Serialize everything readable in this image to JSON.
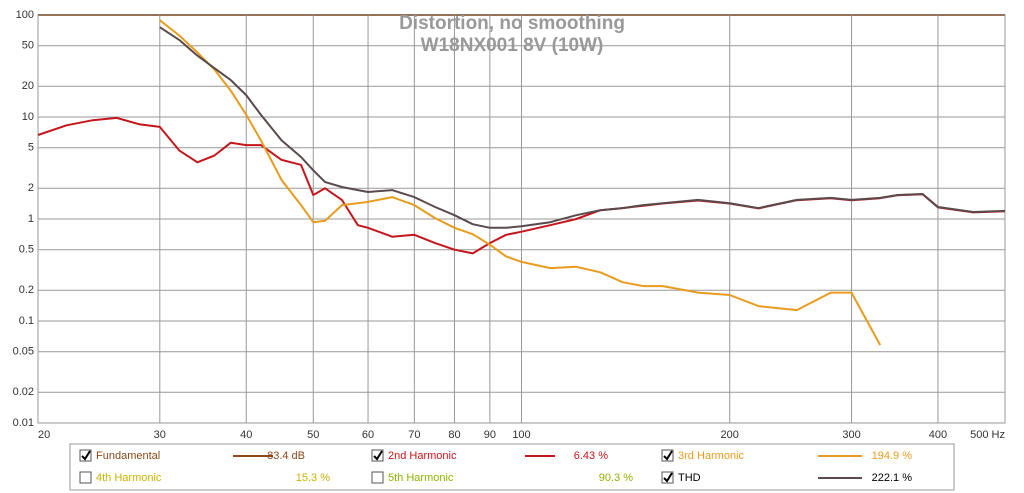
{
  "chart_data": {
    "type": "line",
    "title": "Distortion, no smoothing",
    "subtitle": "W18NX001 8V (10W)",
    "log_x": true,
    "log_y": true,
    "grid": true,
    "xlim": [
      20,
      500
    ],
    "xticks": [
      20,
      30,
      40,
      50,
      60,
      70,
      80,
      90,
      100,
      200,
      300,
      400,
      {
        "value": 500,
        "label": "500 Hz"
      }
    ],
    "ylim": [
      0.01,
      100
    ],
    "yticks": [
      0.01,
      0.02,
      0.05,
      0.1,
      0.2,
      0.5,
      1,
      2,
      5,
      10,
      20,
      50,
      100
    ],
    "x": [
      20,
      22,
      24,
      26,
      28,
      30,
      32,
      34,
      36,
      38,
      40,
      42,
      45,
      48,
      50,
      52,
      55,
      58,
      60,
      65,
      70,
      75,
      80,
      85,
      90,
      95,
      100,
      110,
      120,
      130,
      140,
      150,
      160,
      180,
      200,
      220,
      250,
      280,
      300,
      330,
      350,
      380,
      400,
      450,
      500
    ],
    "series": [
      {
        "name": "Fundamental",
        "color": "#8b4a1c",
        "checked": true,
        "readout": "83.4 dB"
      },
      {
        "name": "2nd Harmonic",
        "color": "#c4161c",
        "checked": true,
        "readout": "6.43 %",
        "values": [
          6.66,
          8.3,
          9.3,
          9.8,
          8.5,
          8.0,
          4.7,
          3.6,
          4.2,
          5.6,
          5.3,
          5.3,
          3.8,
          3.4,
          1.72,
          2.0,
          1.54,
          0.87,
          0.82,
          0.67,
          0.7,
          0.58,
          0.5,
          0.46,
          0.58,
          0.7,
          0.75,
          0.87,
          1.0,
          1.22,
          1.28,
          1.35,
          1.42,
          1.52,
          1.42,
          1.27,
          1.53,
          1.6,
          1.53,
          1.6,
          1.71,
          1.75,
          1.3,
          1.16,
          1.19
        ]
      },
      {
        "name": "3rd Harmonic",
        "color": "#e89c1e",
        "checked": true,
        "readout": "194.9 %",
        "values": [
          null,
          null,
          null,
          null,
          null,
          89,
          63,
          43,
          29,
          18.1,
          10.5,
          5.9,
          2.41,
          1.37,
          0.93,
          0.96,
          1.37,
          1.43,
          1.47,
          1.64,
          1.37,
          1.02,
          0.82,
          0.71,
          0.56,
          0.43,
          0.38,
          0.33,
          0.34,
          0.3,
          0.24,
          0.22,
          0.22,
          0.19,
          0.18,
          0.14,
          0.128,
          0.19,
          0.19,
          0.058,
          null,
          null,
          null,
          null,
          null
        ]
      },
      {
        "name": "4th Harmonic",
        "color": "#c8b400",
        "checked": false,
        "readout": "15.3 %"
      },
      {
        "name": "5th Harmonic",
        "color": "#8cb400",
        "checked": false,
        "readout": "90.3 %"
      },
      {
        "name": "THD",
        "color": "#5a4a4c",
        "checked": true,
        "readout": "222.1 %",
        "values": [
          null,
          null,
          null,
          null,
          null,
          76,
          57,
          40,
          30,
          23,
          16.4,
          10.5,
          5.9,
          4.05,
          3.0,
          2.3,
          2.06,
          1.92,
          1.84,
          1.92,
          1.64,
          1.31,
          1.09,
          0.89,
          0.82,
          0.82,
          0.85,
          0.93,
          1.09,
          1.22,
          1.28,
          1.37,
          1.43,
          1.54,
          1.43,
          1.28,
          1.54,
          1.61,
          1.54,
          1.61,
          1.72,
          1.76,
          1.31,
          1.17,
          1.2
        ]
      }
    ]
  }
}
